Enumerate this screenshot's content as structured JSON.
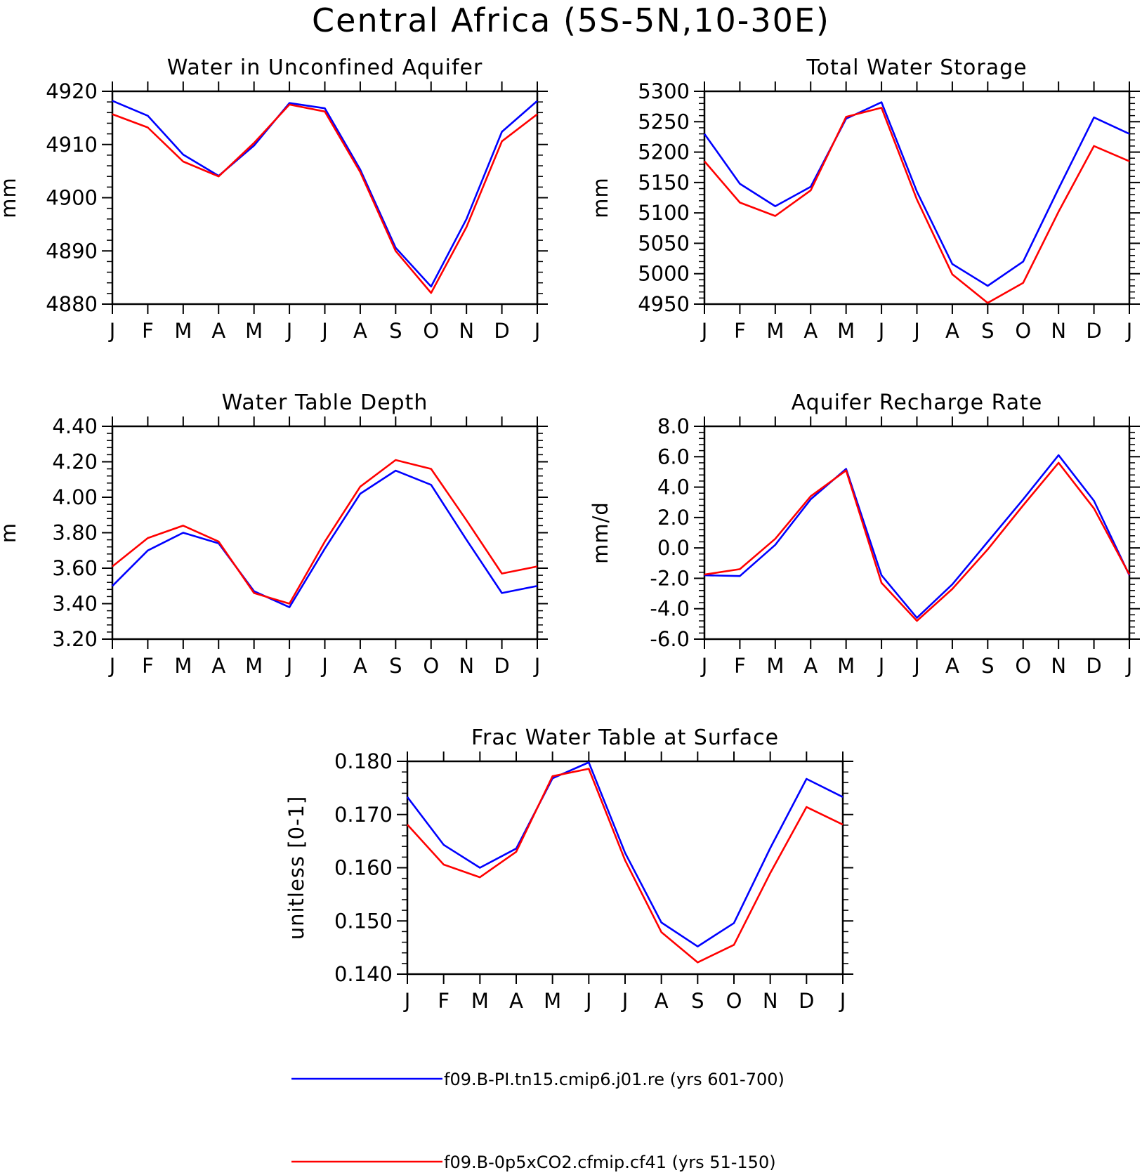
{
  "title": "Central Africa (5S-5N,10-30E)",
  "colors": {
    "series_1": "#0000ff",
    "series_2": "#ff0000",
    "axes": "#000000"
  },
  "legend": {
    "entries": [
      {
        "label": "f09.B-PI.tn15.cmip6.j01.re (yrs 601-700)",
        "color": "#0000ff"
      },
      {
        "label": "f09.B-0p5xCO2.cfmip.cf41 (yrs 51-150)",
        "color": "#ff0000"
      }
    ]
  },
  "chart_data": [
    {
      "type": "line",
      "title": "Water in Unconfined Aquifer",
      "ylabel": "mm",
      "categories": [
        "J",
        "F",
        "M",
        "A",
        "M",
        "J",
        "J",
        "A",
        "S",
        "O",
        "N",
        "D",
        "J"
      ],
      "ylim": [
        4880,
        4920
      ],
      "yticks": [
        4880,
        4890,
        4900,
        4910,
        4920
      ],
      "ytick_labels": [
        "4880",
        "4890",
        "4900",
        "4910",
        "4920"
      ],
      "grid": false,
      "series": [
        {
          "values": [
            4918.2,
            4915.4,
            4908.1,
            4904.1,
            4909.8,
            4917.8,
            4916.8,
            4905.3,
            4890.6,
            4883.3,
            4896.0,
            4912.4,
            4918.2
          ]
        },
        {
          "values": [
            4915.7,
            4913.2,
            4906.8,
            4904.0,
            4910.3,
            4917.5,
            4916.2,
            4904.8,
            4890.0,
            4882.1,
            4894.5,
            4910.6,
            4915.7
          ]
        }
      ]
    },
    {
      "type": "line",
      "title": "Total Water Storage",
      "ylabel": "mm",
      "categories": [
        "J",
        "F",
        "M",
        "A",
        "M",
        "J",
        "J",
        "A",
        "S",
        "O",
        "N",
        "D",
        "J"
      ],
      "ylim": [
        4950,
        5300
      ],
      "yticks": [
        4950,
        5000,
        5050,
        5100,
        5150,
        5200,
        5250,
        5300
      ],
      "ytick_labels": [
        "4950",
        "5000",
        "5050",
        "5100",
        "5150",
        "5200",
        "5250",
        "5300"
      ],
      "grid": false,
      "series": [
        {
          "values": [
            5230,
            5148,
            5111,
            5143,
            5255,
            5282,
            5135,
            5016,
            4980,
            5020,
            5140,
            5257,
            5230
          ]
        },
        {
          "values": [
            5185,
            5117,
            5095,
            5137,
            5258,
            5273,
            5122,
            4999,
            4952,
            4985,
            5102,
            5210,
            5185
          ]
        }
      ]
    },
    {
      "type": "line",
      "title": "Water Table Depth",
      "ylabel": "m",
      "categories": [
        "J",
        "F",
        "M",
        "A",
        "M",
        "J",
        "J",
        "A",
        "S",
        "O",
        "N",
        "D",
        "J"
      ],
      "ylim": [
        3.2,
        4.4
      ],
      "yticks": [
        3.2,
        3.4,
        3.6,
        3.8,
        4.0,
        4.2,
        4.4
      ],
      "ytick_labels": [
        "3.20",
        "3.40",
        "3.60",
        "3.80",
        "4.00",
        "4.20",
        "4.40"
      ],
      "grid": false,
      "series": [
        {
          "values": [
            3.5,
            3.7,
            3.8,
            3.74,
            3.47,
            3.38,
            3.71,
            4.02,
            4.15,
            4.07,
            3.76,
            3.46,
            3.5
          ]
        },
        {
          "values": [
            3.61,
            3.77,
            3.84,
            3.75,
            3.46,
            3.4,
            3.75,
            4.06,
            4.21,
            4.16,
            3.87,
            3.57,
            3.61
          ]
        }
      ]
    },
    {
      "type": "line",
      "title": "Aquifer Recharge Rate",
      "ylabel": "mm/d",
      "categories": [
        "J",
        "F",
        "M",
        "A",
        "M",
        "J",
        "J",
        "A",
        "S",
        "O",
        "N",
        "D",
        "J"
      ],
      "ylim": [
        -6.0,
        8.0
      ],
      "yticks": [
        -6.0,
        -4.0,
        -2.0,
        0.0,
        2.0,
        4.0,
        6.0,
        8.0
      ],
      "ytick_labels": [
        "-6.0",
        "-4.0",
        "-2.0",
        "0.0",
        "2.0",
        "4.0",
        "6.0",
        "8.0"
      ],
      "grid": false,
      "series": [
        {
          "values": [
            -1.8,
            -1.85,
            0.2,
            3.2,
            5.2,
            -1.8,
            -4.6,
            -2.4,
            0.4,
            3.2,
            6.1,
            3.1,
            -1.8
          ]
        },
        {
          "values": [
            -1.75,
            -1.4,
            0.6,
            3.4,
            5.1,
            -2.3,
            -4.8,
            -2.7,
            -0.1,
            2.8,
            5.6,
            2.6,
            -1.75
          ]
        }
      ]
    },
    {
      "type": "line",
      "title": "Frac Water Table at Surface",
      "ylabel": "unitless [0-1]",
      "categories": [
        "J",
        "F",
        "M",
        "A",
        "M",
        "J",
        "J",
        "A",
        "S",
        "O",
        "N",
        "D",
        "J"
      ],
      "ylim": [
        0.14,
        0.18
      ],
      "yticks": [
        0.14,
        0.15,
        0.16,
        0.17,
        0.18
      ],
      "ytick_labels": [
        "0.140",
        "0.150",
        "0.160",
        "0.170",
        "0.180"
      ],
      "grid": false,
      "series": [
        {
          "values": [
            0.1733,
            0.1643,
            0.16,
            0.1636,
            0.1768,
            0.1798,
            0.1628,
            0.1497,
            0.1452,
            0.1496,
            0.1637,
            0.1767,
            0.1733
          ]
        },
        {
          "values": [
            0.1681,
            0.1606,
            0.1582,
            0.163,
            0.1772,
            0.1786,
            0.1614,
            0.1479,
            0.1422,
            0.1455,
            0.159,
            0.1714,
            0.1681
          ]
        }
      ]
    }
  ]
}
